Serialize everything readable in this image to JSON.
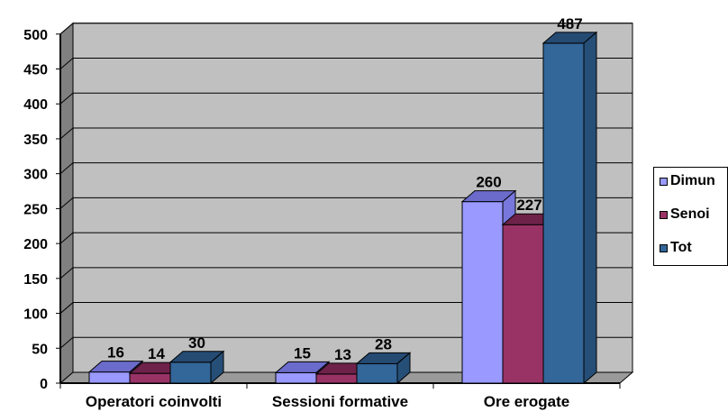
{
  "colors": {
    "wall": "#c0c0c0",
    "wall_side": "#808080",
    "floor": "#9a9a9a",
    "grid": "#000000",
    "series": [
      "#9999ff",
      "#993366",
      "#336699"
    ],
    "series_top": [
      "#6b6bcc",
      "#6e2249",
      "#254b73"
    ],
    "series_side": [
      "#7777dd",
      "#77294f",
      "#264f78"
    ]
  },
  "chart_data": {
    "type": "bar",
    "style": "3d-clustered",
    "categories": [
      "Operatori coinvolti",
      "Sessioni formative",
      "Ore erogate"
    ],
    "series": [
      {
        "name": "Dimun",
        "values": [
          16,
          15,
          260
        ]
      },
      {
        "name": "Senoi",
        "values": [
          14,
          13,
          227
        ]
      },
      {
        "name": "Tot",
        "values": [
          30,
          28,
          487
        ]
      }
    ],
    "yticks": [
      "0",
      "50",
      "100",
      "150",
      "200",
      "250",
      "300",
      "350",
      "400",
      "450",
      "500"
    ],
    "ylim": [
      0,
      500
    ],
    "grid": true,
    "legend": "right"
  }
}
